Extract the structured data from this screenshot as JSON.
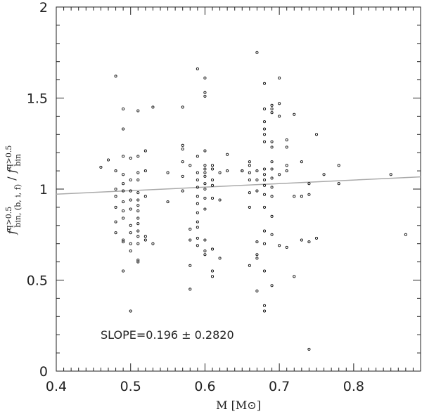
{
  "chart_data": {
    "type": "scatter",
    "xlabel": "M [M⊙]",
    "ylabel_main": "f",
    "ylabel_num_sup": "q>0.5",
    "ylabel_num_sub": "bin, (b, i, f)",
    "ylabel_sep": " / ",
    "ylabel_den_sup": "q>0.5",
    "ylabel_den_sub": "bin",
    "xlim": [
      0.4,
      0.89
    ],
    "ylim": [
      0,
      2
    ],
    "xticks": [
      0.4,
      0.5,
      0.6,
      0.7,
      0.8
    ],
    "xtick_labels": [
      "0.4",
      "0.5",
      "0.6",
      "0.7",
      "0.8"
    ],
    "yticks": [
      0,
      0.5,
      1,
      1.5,
      2
    ],
    "ytick_labels": [
      "0",
      "0.5",
      "1",
      "1.5",
      "2"
    ],
    "annotation": "SLOPE=0.196  ±  0.2820",
    "fit_line": {
      "x": [
        0.4,
        0.89
      ],
      "y": [
        0.972,
        1.067
      ],
      "color": "#aaaaaa"
    },
    "points": [
      [
        0.46,
        1.12
      ],
      [
        0.47,
        1.16
      ],
      [
        0.48,
        1.62
      ],
      [
        0.48,
        1.1
      ],
      [
        0.48,
        1.0
      ],
      [
        0.48,
        0.96
      ],
      [
        0.48,
        0.9
      ],
      [
        0.48,
        0.82
      ],
      [
        0.48,
        0.76
      ],
      [
        0.49,
        1.44
      ],
      [
        0.49,
        1.33
      ],
      [
        0.49,
        1.18
      ],
      [
        0.49,
        1.08
      ],
      [
        0.49,
        1.03
      ],
      [
        0.49,
        0.99
      ],
      [
        0.49,
        0.93
      ],
      [
        0.49,
        0.88
      ],
      [
        0.49,
        0.84
      ],
      [
        0.49,
        0.72
      ],
      [
        0.49,
        0.71
      ],
      [
        0.49,
        0.55
      ],
      [
        0.5,
        1.17
      ],
      [
        0.5,
        1.05
      ],
      [
        0.5,
        0.99
      ],
      [
        0.5,
        0.94
      ],
      [
        0.5,
        0.89
      ],
      [
        0.5,
        0.8
      ],
      [
        0.5,
        0.76
      ],
      [
        0.5,
        0.7
      ],
      [
        0.5,
        0.66
      ],
      [
        0.5,
        0.33
      ],
      [
        0.51,
        1.43
      ],
      [
        0.51,
        1.18
      ],
      [
        0.51,
        1.09
      ],
      [
        0.51,
        1.05
      ],
      [
        0.51,
        0.98
      ],
      [
        0.51,
        0.94
      ],
      [
        0.51,
        0.91
      ],
      [
        0.51,
        0.88
      ],
      [
        0.51,
        0.84
      ],
      [
        0.51,
        0.81
      ],
      [
        0.51,
        0.77
      ],
      [
        0.51,
        0.74
      ],
      [
        0.51,
        0.7
      ],
      [
        0.51,
        0.61
      ],
      [
        0.51,
        0.6
      ],
      [
        0.52,
        1.21
      ],
      [
        0.52,
        1.1
      ],
      [
        0.52,
        0.96
      ],
      [
        0.52,
        0.74
      ],
      [
        0.52,
        0.72
      ],
      [
        0.53,
        1.45
      ],
      [
        0.53,
        0.7
      ],
      [
        0.55,
        1.09
      ],
      [
        0.55,
        0.93
      ],
      [
        0.57,
        1.45
      ],
      [
        0.57,
        1.24
      ],
      [
        0.57,
        1.22
      ],
      [
        0.57,
        1.15
      ],
      [
        0.57,
        1.07
      ],
      [
        0.57,
        0.99
      ],
      [
        0.58,
        1.13
      ],
      [
        0.58,
        0.78
      ],
      [
        0.58,
        0.72
      ],
      [
        0.58,
        0.58
      ],
      [
        0.58,
        0.45
      ],
      [
        0.59,
        1.66
      ],
      [
        0.59,
        1.18
      ],
      [
        0.59,
        1.09
      ],
      [
        0.59,
        1.05
      ],
      [
        0.59,
        1.01
      ],
      [
        0.59,
        0.96
      ],
      [
        0.59,
        0.92
      ],
      [
        0.59,
        0.87
      ],
      [
        0.59,
        0.82
      ],
      [
        0.59,
        0.79
      ],
      [
        0.59,
        0.73
      ],
      [
        0.59,
        0.69
      ],
      [
        0.6,
        1.61
      ],
      [
        0.6,
        1.53
      ],
      [
        0.6,
        1.51
      ],
      [
        0.6,
        1.21
      ],
      [
        0.6,
        1.13
      ],
      [
        0.6,
        1.11
      ],
      [
        0.6,
        1.09
      ],
      [
        0.6,
        1.07
      ],
      [
        0.6,
        1.03
      ],
      [
        0.6,
        1.0
      ],
      [
        0.6,
        0.95
      ],
      [
        0.6,
        0.89
      ],
      [
        0.6,
        0.72
      ],
      [
        0.6,
        0.66
      ],
      [
        0.6,
        0.64
      ],
      [
        0.61,
        1.13
      ],
      [
        0.61,
        1.11
      ],
      [
        0.61,
        1.05
      ],
      [
        0.61,
        1.02
      ],
      [
        0.61,
        0.95
      ],
      [
        0.61,
        0.67
      ],
      [
        0.61,
        0.55
      ],
      [
        0.61,
        0.52
      ],
      [
        0.62,
        1.09
      ],
      [
        0.62,
        0.94
      ],
      [
        0.62,
        0.62
      ],
      [
        0.63,
        1.19
      ],
      [
        0.63,
        1.1
      ],
      [
        0.65,
        1.1
      ],
      [
        0.65,
        1.1
      ],
      [
        0.66,
        1.15
      ],
      [
        0.66,
        1.13
      ],
      [
        0.66,
        1.09
      ],
      [
        0.66,
        1.05
      ],
      [
        0.66,
        0.98
      ],
      [
        0.66,
        0.9
      ],
      [
        0.66,
        0.58
      ],
      [
        0.67,
        1.75
      ],
      [
        0.67,
        1.1
      ],
      [
        0.67,
        1.05
      ],
      [
        0.67,
        0.99
      ],
      [
        0.67,
        0.71
      ],
      [
        0.67,
        0.64
      ],
      [
        0.67,
        0.62
      ],
      [
        0.67,
        0.44
      ],
      [
        0.68,
        1.58
      ],
      [
        0.68,
        1.44
      ],
      [
        0.68,
        1.37
      ],
      [
        0.68,
        1.33
      ],
      [
        0.68,
        1.3
      ],
      [
        0.68,
        1.26
      ],
      [
        0.68,
        1.11
      ],
      [
        0.68,
        1.08
      ],
      [
        0.68,
        1.05
      ],
      [
        0.68,
        1.02
      ],
      [
        0.68,
        0.97
      ],
      [
        0.68,
        0.9
      ],
      [
        0.68,
        0.77
      ],
      [
        0.68,
        0.7
      ],
      [
        0.68,
        0.55
      ],
      [
        0.68,
        0.36
      ],
      [
        0.68,
        0.33
      ],
      [
        0.69,
        1.46
      ],
      [
        0.69,
        1.44
      ],
      [
        0.69,
        1.42
      ],
      [
        0.69,
        1.26
      ],
      [
        0.69,
        1.23
      ],
      [
        0.69,
        1.15
      ],
      [
        0.69,
        1.11
      ],
      [
        0.69,
        1.06
      ],
      [
        0.69,
        1.01
      ],
      [
        0.69,
        0.96
      ],
      [
        0.69,
        0.85
      ],
      [
        0.69,
        0.75
      ],
      [
        0.69,
        0.47
      ],
      [
        0.7,
        1.61
      ],
      [
        0.7,
        1.47
      ],
      [
        0.7,
        1.4
      ],
      [
        0.7,
        1.08
      ],
      [
        0.7,
        0.69
      ],
      [
        0.71,
        1.27
      ],
      [
        0.71,
        1.23
      ],
      [
        0.71,
        1.13
      ],
      [
        0.71,
        1.1
      ],
      [
        0.71,
        0.68
      ],
      [
        0.72,
        1.41
      ],
      [
        0.72,
        0.96
      ],
      [
        0.72,
        0.52
      ],
      [
        0.73,
        1.15
      ],
      [
        0.73,
        0.96
      ],
      [
        0.73,
        0.72
      ],
      [
        0.74,
        1.03
      ],
      [
        0.74,
        0.97
      ],
      [
        0.74,
        0.71
      ],
      [
        0.74,
        0.12
      ],
      [
        0.75,
        1.3
      ],
      [
        0.75,
        0.73
      ],
      [
        0.76,
        1.08
      ],
      [
        0.78,
        1.13
      ],
      [
        0.78,
        1.03
      ],
      [
        0.85,
        1.08
      ],
      [
        0.87,
        0.75
      ]
    ]
  }
}
